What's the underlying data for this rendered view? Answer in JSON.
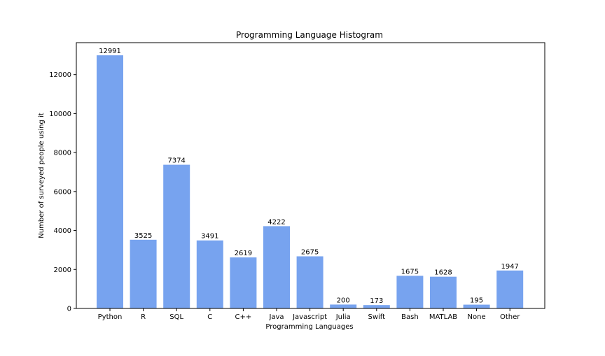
{
  "chart_data": {
    "type": "bar",
    "title": "Programming Language Histogram",
    "xlabel": "Programming Languages",
    "ylabel": "Number of surveyed people using it",
    "categories": [
      "Python",
      "R",
      "SQL",
      "C",
      "C++",
      "Java",
      "Javascript",
      "Julia",
      "Swift",
      "Bash",
      "MATLAB",
      "None",
      "Other"
    ],
    "values": [
      12991,
      3525,
      7374,
      3491,
      2619,
      4222,
      2675,
      200,
      173,
      1675,
      1628,
      195,
      1947
    ],
    "data_labels": [
      "12991",
      "3525",
      "7374",
      "3491",
      "2619",
      "4222",
      "2675",
      "200",
      "173",
      "1675",
      "1628",
      "195",
      "1947"
    ],
    "yticks": [
      0,
      2000,
      4000,
      6000,
      8000,
      10000,
      12000
    ],
    "ytick_labels": [
      "0",
      "2000",
      "4000",
      "6000",
      "8000",
      "10000",
      "12000"
    ],
    "ylim": [
      0,
      13640
    ],
    "grid": false,
    "bar_color": "#77a3ef"
  }
}
